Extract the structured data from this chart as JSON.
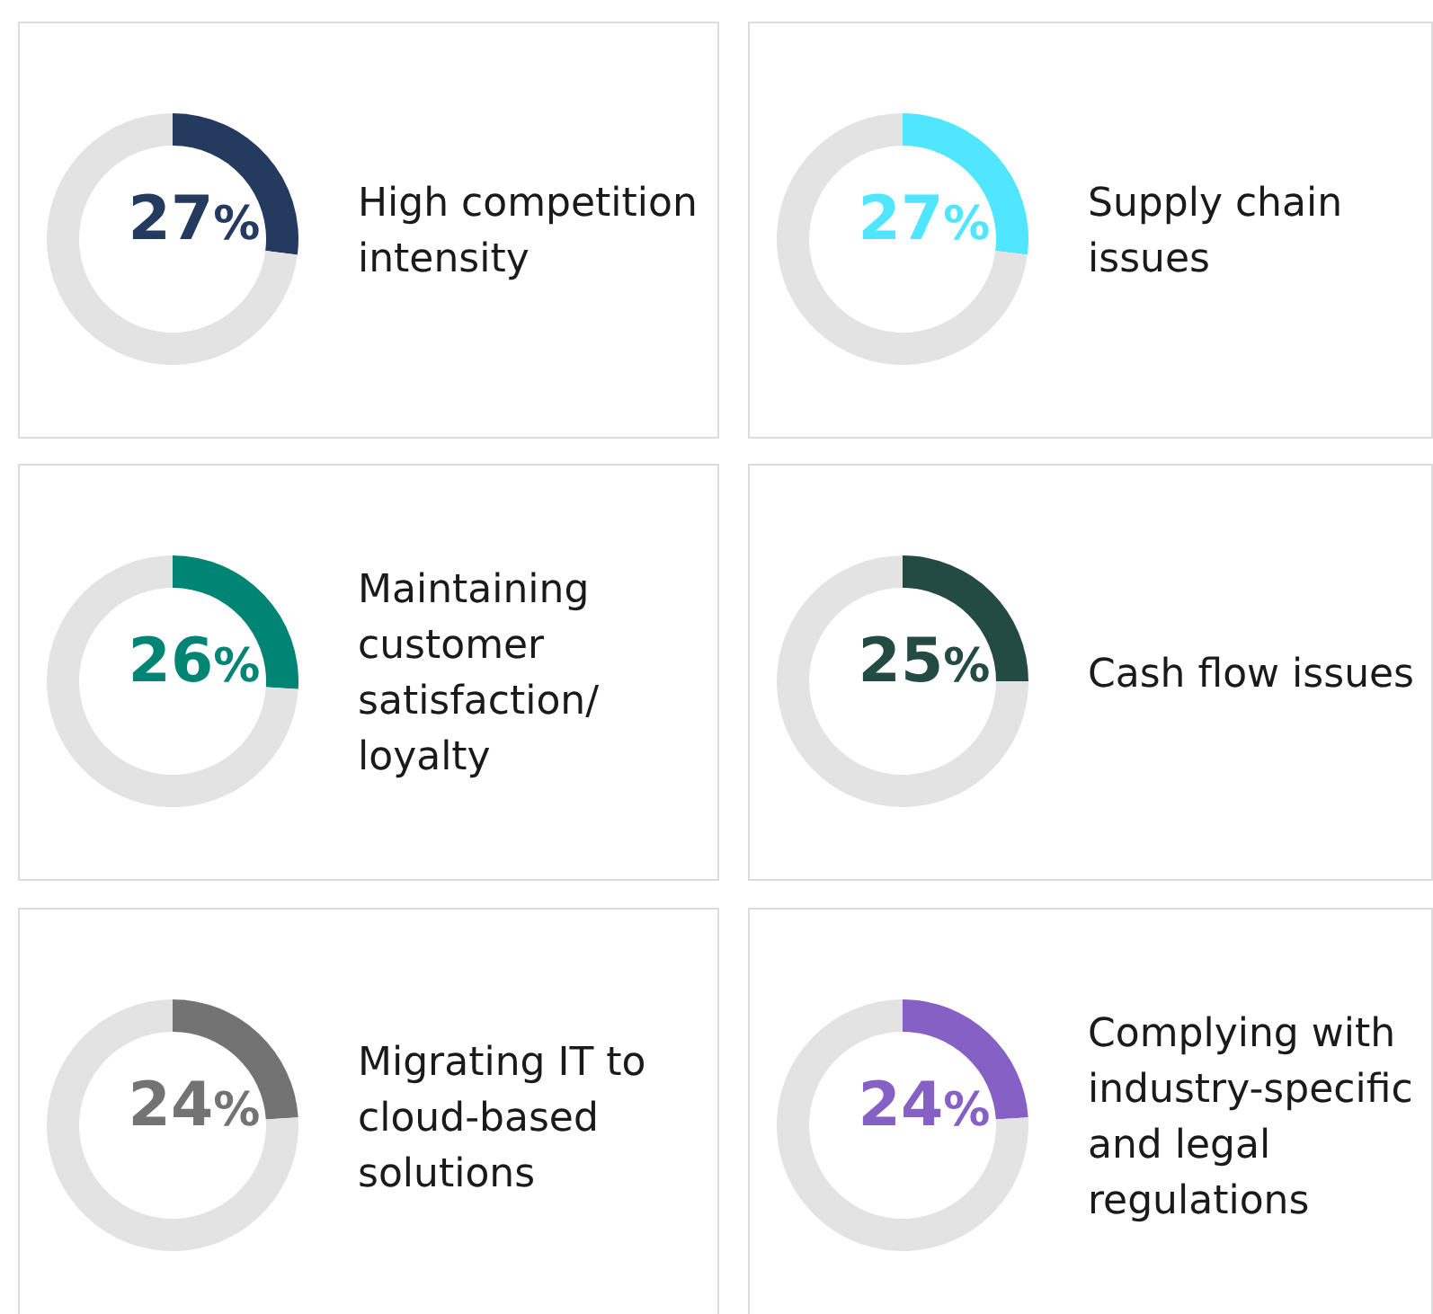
{
  "chart_data": [
    {
      "type": "donut",
      "categories": [
        "High competition intensity",
        null
      ],
      "values": [
        27,
        73
      ],
      "colors": [
        "#243a5e",
        "#e3e3e3"
      ],
      "value_labels": [
        "27%",
        null
      ]
    },
    {
      "type": "donut",
      "categories": [
        "Supply chain issues",
        null
      ],
      "values": [
        27,
        73
      ],
      "colors": [
        "#50e6ff",
        "#e3e3e3"
      ],
      "value_labels": [
        "27%",
        null
      ]
    },
    {
      "type": "donut",
      "categories": [
        "Maintaining customer satisfaction/ loyalty",
        null
      ],
      "values": [
        26,
        74
      ],
      "colors": [
        "#008575",
        "#e3e3e3"
      ],
      "value_labels": [
        "26%",
        null
      ]
    },
    {
      "type": "donut",
      "categories": [
        "Cash flow issues",
        null
      ],
      "values": [
        25,
        75
      ],
      "colors": [
        "#234b44",
        "#e3e3e3"
      ],
      "value_labels": [
        "25%",
        null
      ]
    },
    {
      "type": "donut",
      "categories": [
        "Migrating IT to cloud-based solutions",
        null
      ],
      "values": [
        24,
        76
      ],
      "colors": [
        "#737373",
        "#e3e3e3"
      ],
      "value_labels": [
        "24%",
        null
      ]
    },
    {
      "type": "donut",
      "categories": [
        "Complying with industry-specific and legal regulations",
        null
      ],
      "values": [
        24,
        76
      ],
      "colors": [
        "#8661c5",
        "#e3e3e3"
      ],
      "value_labels": [
        "24%",
        null
      ]
    }
  ]
}
